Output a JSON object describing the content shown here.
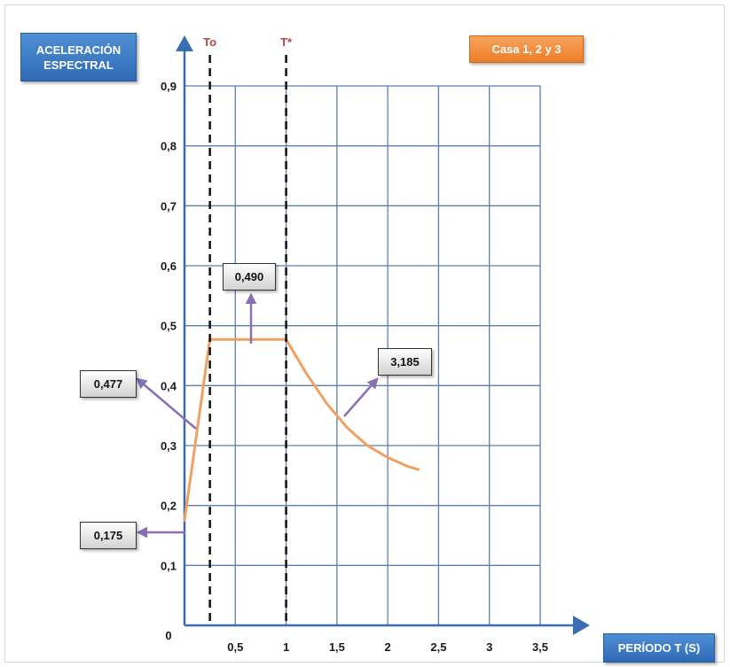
{
  "chart_data": {
    "type": "line",
    "ylabel": "ACELERACIÓN ESPECTRAL",
    "xlabel": "PERÍODO T (S)",
    "legend": "Casa 1, 2 y 3",
    "xlim": [
      0,
      3.5
    ],
    "ylim": [
      0,
      0.9
    ],
    "x_ticks": [
      "0,5",
      "1",
      "1,5",
      "2",
      "2,5",
      "3",
      "3,5"
    ],
    "y_ticks": [
      "0,1",
      "0,2",
      "0,3",
      "0,4",
      "0,5",
      "0,6",
      "0,7",
      "0,8",
      "0,9"
    ],
    "origin_label": "0",
    "grid": true,
    "series": [
      {
        "color": "#f0a060",
        "x": [
          0,
          0.25,
          1.0,
          1.2,
          1.4,
          1.6,
          1.8,
          2.0,
          2.2,
          2.3
        ],
        "y": [
          0.175,
          0.477,
          0.477,
          0.42,
          0.37,
          0.33,
          0.3,
          0.28,
          0.265,
          0.26
        ]
      }
    ],
    "markers": [
      {
        "label": "To",
        "x": 0.25
      },
      {
        "label": "T*",
        "x": 1.0
      }
    ],
    "annotations": [
      {
        "text": "0,477"
      },
      {
        "text": "0,490"
      },
      {
        "text": "3,185"
      },
      {
        "text": "0,175"
      }
    ]
  }
}
